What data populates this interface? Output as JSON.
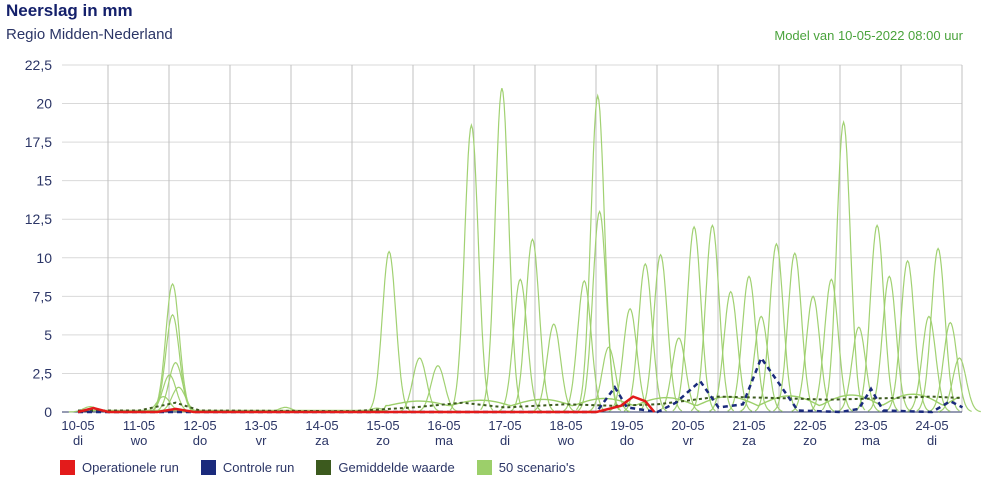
{
  "header": {
    "title": "Neerslag in mm",
    "subtitle": "Regio Midden-Nederland",
    "model_text": "Model van 10-05-2022 08:00 uur"
  },
  "colors": {
    "operational": "#e31b1b",
    "control": "#1a2a7c",
    "mean": "#3c5a1e",
    "scenarios": "#9ccf6a",
    "grid": "#d9d9d9",
    "day_grid": "#c0c0c0"
  },
  "legend": [
    {
      "label": "Operationele run",
      "color": "#e31b1b"
    },
    {
      "label": "Controle run",
      "color": "#1a2a7c"
    },
    {
      "label": "Gemiddelde waarde",
      "color": "#3c5a1e"
    },
    {
      "label": "50 scenario's",
      "color": "#9ccf6a"
    }
  ],
  "chart_data": {
    "type": "line",
    "title": "Neerslag in mm",
    "subtitle": "Regio Midden-Nederland",
    "ylim": [
      0,
      22.5
    ],
    "yticks": [
      "0",
      "2,5",
      "5",
      "7,5",
      "10",
      "12,5",
      "15",
      "17,5",
      "20",
      "22,5"
    ],
    "x_dates": [
      "10-05",
      "11-05",
      "12-05",
      "13-05",
      "14-05",
      "15-05",
      "16-05",
      "17-05",
      "18-05",
      "19-05",
      "20-05",
      "21-05",
      "22-05",
      "23-05",
      "24-05"
    ],
    "x_days": [
      "di",
      "wo",
      "do",
      "vr",
      "za",
      "zo",
      "ma",
      "di",
      "wo",
      "do",
      "vr",
      "za",
      "zo",
      "ma",
      "di"
    ],
    "operational_run": [
      {
        "d": 0.0,
        "v": 0
      },
      {
        "d": 0.25,
        "v": 0.25
      },
      {
        "d": 0.5,
        "v": 0
      },
      {
        "d": 1.3,
        "v": 0
      },
      {
        "d": 1.6,
        "v": 0.2
      },
      {
        "d": 1.9,
        "v": 0
      },
      {
        "d": 8.5,
        "v": 0
      },
      {
        "d": 8.9,
        "v": 0.4
      },
      {
        "d": 9.1,
        "v": 1.0
      },
      {
        "d": 9.3,
        "v": 0.7
      },
      {
        "d": 9.45,
        "v": 0
      }
    ],
    "control_run": [
      {
        "d": 0,
        "v": 0
      },
      {
        "d": 8.5,
        "v": 0
      },
      {
        "d": 8.8,
        "v": 1.6
      },
      {
        "d": 9.0,
        "v": 0.3
      },
      {
        "d": 9.5,
        "v": 0
      },
      {
        "d": 9.8,
        "v": 0.6
      },
      {
        "d": 10.2,
        "v": 2.0
      },
      {
        "d": 10.5,
        "v": 0.3
      },
      {
        "d": 10.9,
        "v": 0.5
      },
      {
        "d": 11.2,
        "v": 3.5
      },
      {
        "d": 11.5,
        "v": 1.8
      },
      {
        "d": 11.8,
        "v": 0.1
      },
      {
        "d": 12.5,
        "v": 0
      },
      {
        "d": 12.8,
        "v": 0.2
      },
      {
        "d": 13.0,
        "v": 1.5
      },
      {
        "d": 13.2,
        "v": 0.1
      },
      {
        "d": 14.0,
        "v": 0
      },
      {
        "d": 14.3,
        "v": 0.7
      },
      {
        "d": 14.5,
        "v": 0.3
      }
    ],
    "mean_value": [
      {
        "d": 0,
        "v": 0.1
      },
      {
        "d": 1,
        "v": 0.1
      },
      {
        "d": 1.6,
        "v": 0.6
      },
      {
        "d": 2,
        "v": 0.1
      },
      {
        "d": 4.5,
        "v": 0.05
      },
      {
        "d": 5.5,
        "v": 0.3
      },
      {
        "d": 6.3,
        "v": 0.6
      },
      {
        "d": 7,
        "v": 0.3
      },
      {
        "d": 8,
        "v": 0.5
      },
      {
        "d": 8.8,
        "v": 0.4
      },
      {
        "d": 9.5,
        "v": 0.5
      },
      {
        "d": 10.5,
        "v": 1.0
      },
      {
        "d": 11.5,
        "v": 0.9
      },
      {
        "d": 12.3,
        "v": 0.8
      },
      {
        "d": 13.3,
        "v": 0.9
      },
      {
        "d": 14.0,
        "v": 1.0
      },
      {
        "d": 14.5,
        "v": 0.9
      }
    ],
    "scenario_peaks": [
      {
        "d": 1.55,
        "v": 8.3
      },
      {
        "d": 1.55,
        "v": 6.3
      },
      {
        "d": 1.6,
        "v": 3.2
      },
      {
        "d": 1.5,
        "v": 2.4
      },
      {
        "d": 1.65,
        "v": 1.6
      },
      {
        "d": 1.4,
        "v": 1.0
      },
      {
        "d": 0.2,
        "v": 0.35
      },
      {
        "d": 3.4,
        "v": 0.3
      },
      {
        "d": 4.9,
        "v": 0.25
      },
      {
        "d": 5.1,
        "v": 10.4
      },
      {
        "d": 5.6,
        "v": 3.5
      },
      {
        "d": 5.9,
        "v": 3.0
      },
      {
        "d": 6.45,
        "v": 18.6
      },
      {
        "d": 6.95,
        "v": 21.0
      },
      {
        "d": 7.25,
        "v": 8.6
      },
      {
        "d": 7.45,
        "v": 11.2
      },
      {
        "d": 7.8,
        "v": 5.7
      },
      {
        "d": 8.3,
        "v": 8.5
      },
      {
        "d": 8.52,
        "v": 20.5
      },
      {
        "d": 8.55,
        "v": 13.0
      },
      {
        "d": 8.7,
        "v": 4.2
      },
      {
        "d": 9.05,
        "v": 6.7
      },
      {
        "d": 9.3,
        "v": 9.6
      },
      {
        "d": 9.55,
        "v": 10.2
      },
      {
        "d": 9.85,
        "v": 4.8
      },
      {
        "d": 10.1,
        "v": 12.0
      },
      {
        "d": 10.4,
        "v": 12.1
      },
      {
        "d": 10.7,
        "v": 7.8
      },
      {
        "d": 11.0,
        "v": 8.8
      },
      {
        "d": 11.2,
        "v": 6.2
      },
      {
        "d": 11.45,
        "v": 10.9
      },
      {
        "d": 11.75,
        "v": 10.3
      },
      {
        "d": 12.05,
        "v": 7.5
      },
      {
        "d": 12.35,
        "v": 8.6
      },
      {
        "d": 12.55,
        "v": 18.8
      },
      {
        "d": 12.8,
        "v": 5.5
      },
      {
        "d": 13.1,
        "v": 12.1
      },
      {
        "d": 13.3,
        "v": 8.8
      },
      {
        "d": 13.6,
        "v": 9.8
      },
      {
        "d": 13.95,
        "v": 6.2
      },
      {
        "d": 14.1,
        "v": 10.6
      },
      {
        "d": 14.3,
        "v": 5.8
      },
      {
        "d": 14.45,
        "v": 3.5
      }
    ]
  }
}
